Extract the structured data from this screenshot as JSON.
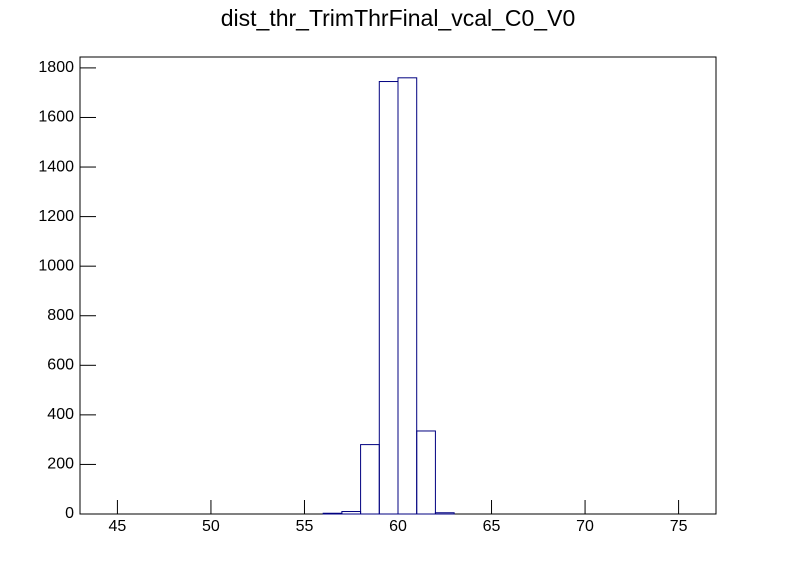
{
  "chart_data": {
    "type": "histogram",
    "title": "dist_thr_TrimThrFinal_vcal_C0_V0",
    "bins": [
      43,
      44,
      45,
      46,
      47,
      48,
      49,
      50,
      51,
      52,
      53,
      54,
      55,
      56,
      57,
      58,
      59,
      60,
      61,
      62,
      63,
      64,
      65,
      66,
      67,
      68,
      69,
      70,
      71,
      72,
      73,
      74,
      75,
      76,
      77
    ],
    "values": [
      0,
      0,
      0,
      0,
      0,
      0,
      0,
      0,
      0,
      0,
      0,
      0,
      0,
      3,
      10,
      280,
      1745,
      1760,
      335,
      5,
      0,
      0,
      0,
      0,
      0,
      0,
      0,
      0,
      0,
      0,
      0,
      0,
      0,
      0
    ],
    "color": "#000080",
    "xlim": [
      43,
      77
    ],
    "xticks": [
      45,
      50,
      55,
      60,
      65,
      70,
      75
    ],
    "ylim": [
      0,
      1844
    ],
    "yticks": [
      0,
      200,
      400,
      600,
      800,
      1000,
      1200,
      1400,
      1600,
      1800
    ]
  }
}
